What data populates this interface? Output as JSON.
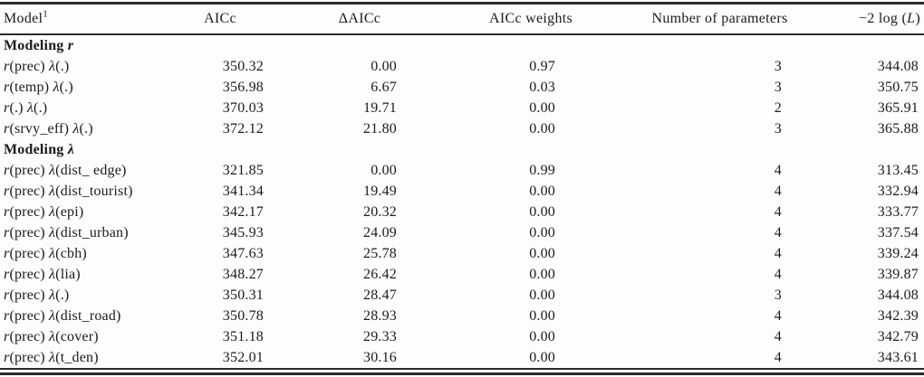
{
  "table": {
    "columns": {
      "model": {
        "text": "Model",
        "sup": "1"
      },
      "aicc": "AICc",
      "delta_aicc": "ΔAICc",
      "aicc_weights": "AICc weights",
      "n_params": "Number of parameters",
      "neg2logl": {
        "prefix": "−2 log (",
        "sym": "L",
        "suffix": ")"
      }
    },
    "symbols": {
      "r": "r",
      "lambda": "λ"
    },
    "rows": [
      {
        "type": "section",
        "label": "Modeling ",
        "sym": "r"
      },
      {
        "type": "model",
        "r_arg": "(prec)",
        "l_arg": "(.)",
        "aicc": "350.32",
        "delta": "0.00",
        "weight": "0.97",
        "k": "3",
        "neg2logl": "344.08"
      },
      {
        "type": "model",
        "r_arg": "(temp)",
        "l_arg": "(.)",
        "aicc": "356.98",
        "delta": "6.67",
        "weight": "0.03",
        "k": "3",
        "neg2logl": "350.75"
      },
      {
        "type": "model",
        "r_arg": "(.)",
        "l_arg": "(.)",
        "aicc": "370.03",
        "delta": "19.71",
        "weight": "0.00",
        "k": "2",
        "neg2logl": "365.91"
      },
      {
        "type": "model",
        "r_arg": "(srvy_eff)",
        "l_arg": "(.)",
        "aicc": "372.12",
        "delta": "21.80",
        "weight": "0.00",
        "k": "3",
        "neg2logl": "365.88"
      },
      {
        "type": "section",
        "label": "Modeling ",
        "sym": "λ"
      },
      {
        "type": "model",
        "r_arg": "(prec)",
        "l_arg": "(dist_ edge)",
        "aicc": "321.85",
        "delta": "0.00",
        "weight": "0.99",
        "k": "4",
        "neg2logl": "313.45"
      },
      {
        "type": "model",
        "r_arg": "(prec)",
        "l_arg": "(dist_tourist)",
        "aicc": "341.34",
        "delta": "19.49",
        "weight": "0.00",
        "k": "4",
        "neg2logl": "332.94"
      },
      {
        "type": "model",
        "r_arg": "(prec)",
        "l_arg": "(epi)",
        "aicc": "342.17",
        "delta": "20.32",
        "weight": "0.00",
        "k": "4",
        "neg2logl": "333.77"
      },
      {
        "type": "model",
        "r_arg": "(prec)",
        "l_arg": "(dist_urban)",
        "aicc": "345.93",
        "delta": "24.09",
        "weight": "0.00",
        "k": "4",
        "neg2logl": "337.54"
      },
      {
        "type": "model",
        "r_arg": "(prec)",
        "l_arg": "(cbh)",
        "aicc": "347.63",
        "delta": "25.78",
        "weight": "0.00",
        "k": "4",
        "neg2logl": "339.24"
      },
      {
        "type": "model",
        "r_arg": "(prec)",
        "l_arg": "(lia)",
        "aicc": "348.27",
        "delta": "26.42",
        "weight": "0.00",
        "k": "4",
        "neg2logl": "339.87"
      },
      {
        "type": "model",
        "r_arg": "(prec)",
        "l_arg": "(.)",
        "aicc": "350.31",
        "delta": "28.47",
        "weight": "0.00",
        "k": "3",
        "neg2logl": "344.08"
      },
      {
        "type": "model",
        "r_arg": "(prec)",
        "l_arg": "(dist_road)",
        "aicc": "350.78",
        "delta": "28.93",
        "weight": "0.00",
        "k": "4",
        "neg2logl": "342.39"
      },
      {
        "type": "model",
        "r_arg": "(prec)",
        "l_arg": "(cover)",
        "aicc": "351.18",
        "delta": "29.33",
        "weight": "0.00",
        "k": "4",
        "neg2logl": "342.79"
      },
      {
        "type": "model",
        "r_arg": "(prec)",
        "l_arg": "(t_den)",
        "aicc": "352.01",
        "delta": "30.16",
        "weight": "0.00",
        "k": "4",
        "neg2logl": "343.61"
      }
    ]
  }
}
